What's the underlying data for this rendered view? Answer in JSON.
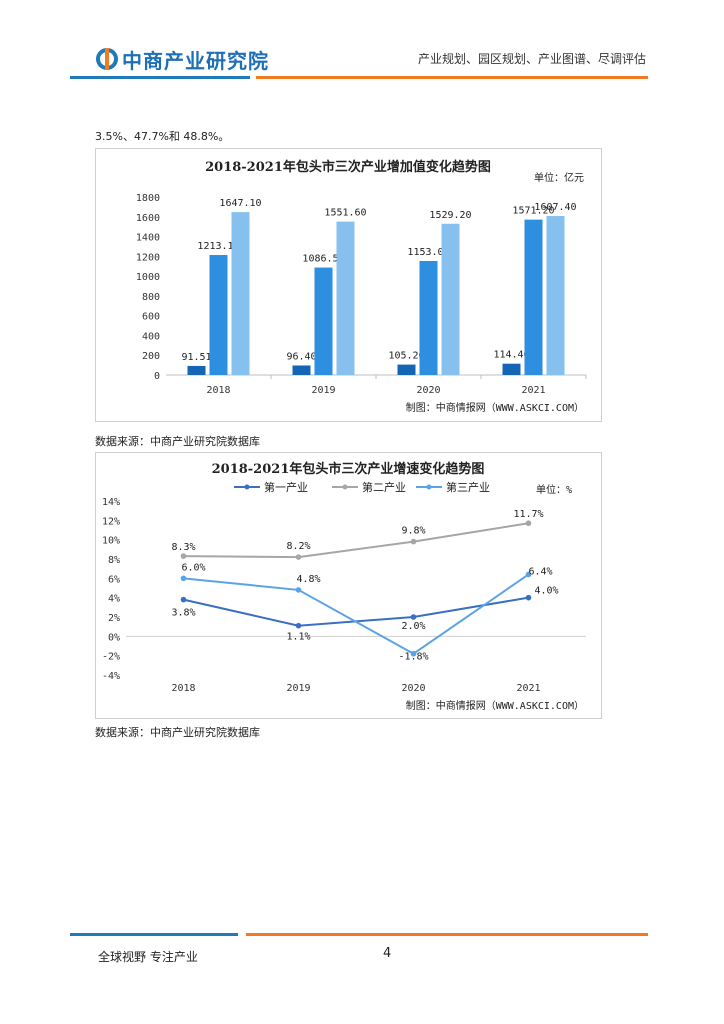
{
  "header": {
    "logo_text": "中商产业研究院",
    "tagline": "产业规划、园区规划、产业图谱、尽调评估",
    "brand_blue": "#1f7ab7",
    "brand_orange": "#f07b23"
  },
  "intro_text": "3.5%、47.7%和 48.8%。",
  "chart_data": [
    {
      "type": "bar",
      "title": "2018-2021年包头市三次产业增加值变化趋势图",
      "unit": "单位：亿元",
      "credit": "制图：中商情报网（WWW.ASKCI.COM）",
      "categories": [
        "2018",
        "2019",
        "2020",
        "2021"
      ],
      "ylim": [
        0,
        1800
      ],
      "yticks": [
        0,
        200,
        400,
        600,
        800,
        1000,
        1200,
        1400,
        1600,
        1800
      ],
      "grid": false,
      "legend": "none",
      "series": [
        {
          "values": [
            91.51,
            96.4,
            105.2,
            114.4
          ],
          "labels": [
            "91.51",
            "96.40",
            "105.20",
            "114.40"
          ],
          "color": "#1565b5"
        },
        {
          "values": [
            1213.19,
            1086.5,
            1153.0,
            1571.2
          ],
          "labels": [
            "1213.19",
            "1086.50",
            "1153.00",
            "1571.20"
          ],
          "color": "#2e8ee0"
        },
        {
          "values": [
            1647.1,
            1551.6,
            1529.2,
            1607.4
          ],
          "labels": [
            "1647.10",
            "1551.60",
            "1529.20",
            "1607.40"
          ],
          "color": "#86c0ef"
        }
      ]
    },
    {
      "type": "line",
      "title": "2018-2021年包头市三次产业增速变化趋势图",
      "unit": "单位：%",
      "credit": "制图：中商情报网（WWW.ASKCI.COM）",
      "categories": [
        "2018",
        "2019",
        "2020",
        "2021"
      ],
      "ylim": [
        -4,
        14
      ],
      "yticks": [
        -4,
        -2,
        0,
        2,
        4,
        6,
        8,
        10,
        12,
        14
      ],
      "ytick_labels": [
        "-4%",
        "-2%",
        "0%",
        "2%",
        "4%",
        "6%",
        "8%",
        "10%",
        "12%",
        "14%"
      ],
      "grid": false,
      "legend": "top",
      "series": [
        {
          "name": "第一产业",
          "values": [
            3.8,
            1.1,
            2.0,
            4.0
          ],
          "labels": [
            "3.8%",
            "1.1%",
            "2.0%",
            "4.0%"
          ],
          "color": "#3a6fc2"
        },
        {
          "name": "第二产业",
          "values": [
            8.3,
            8.2,
            9.8,
            11.7
          ],
          "labels": [
            "8.3%",
            "8.2%",
            "9.8%",
            "11.7%"
          ],
          "color": "#a6a6a6"
        },
        {
          "name": "第三产业",
          "values": [
            6.0,
            4.8,
            -1.8,
            6.4
          ],
          "labels": [
            "6.0%",
            "4.8%",
            "-1.8%",
            "6.4%"
          ],
          "color": "#5ba3e6"
        }
      ]
    }
  ],
  "sources": [
    "数据来源：中商产业研究院数据库",
    "数据来源：中商产业研究院数据库"
  ],
  "footer": {
    "slogan": "全球视野  专注产业",
    "page_number": "4"
  }
}
